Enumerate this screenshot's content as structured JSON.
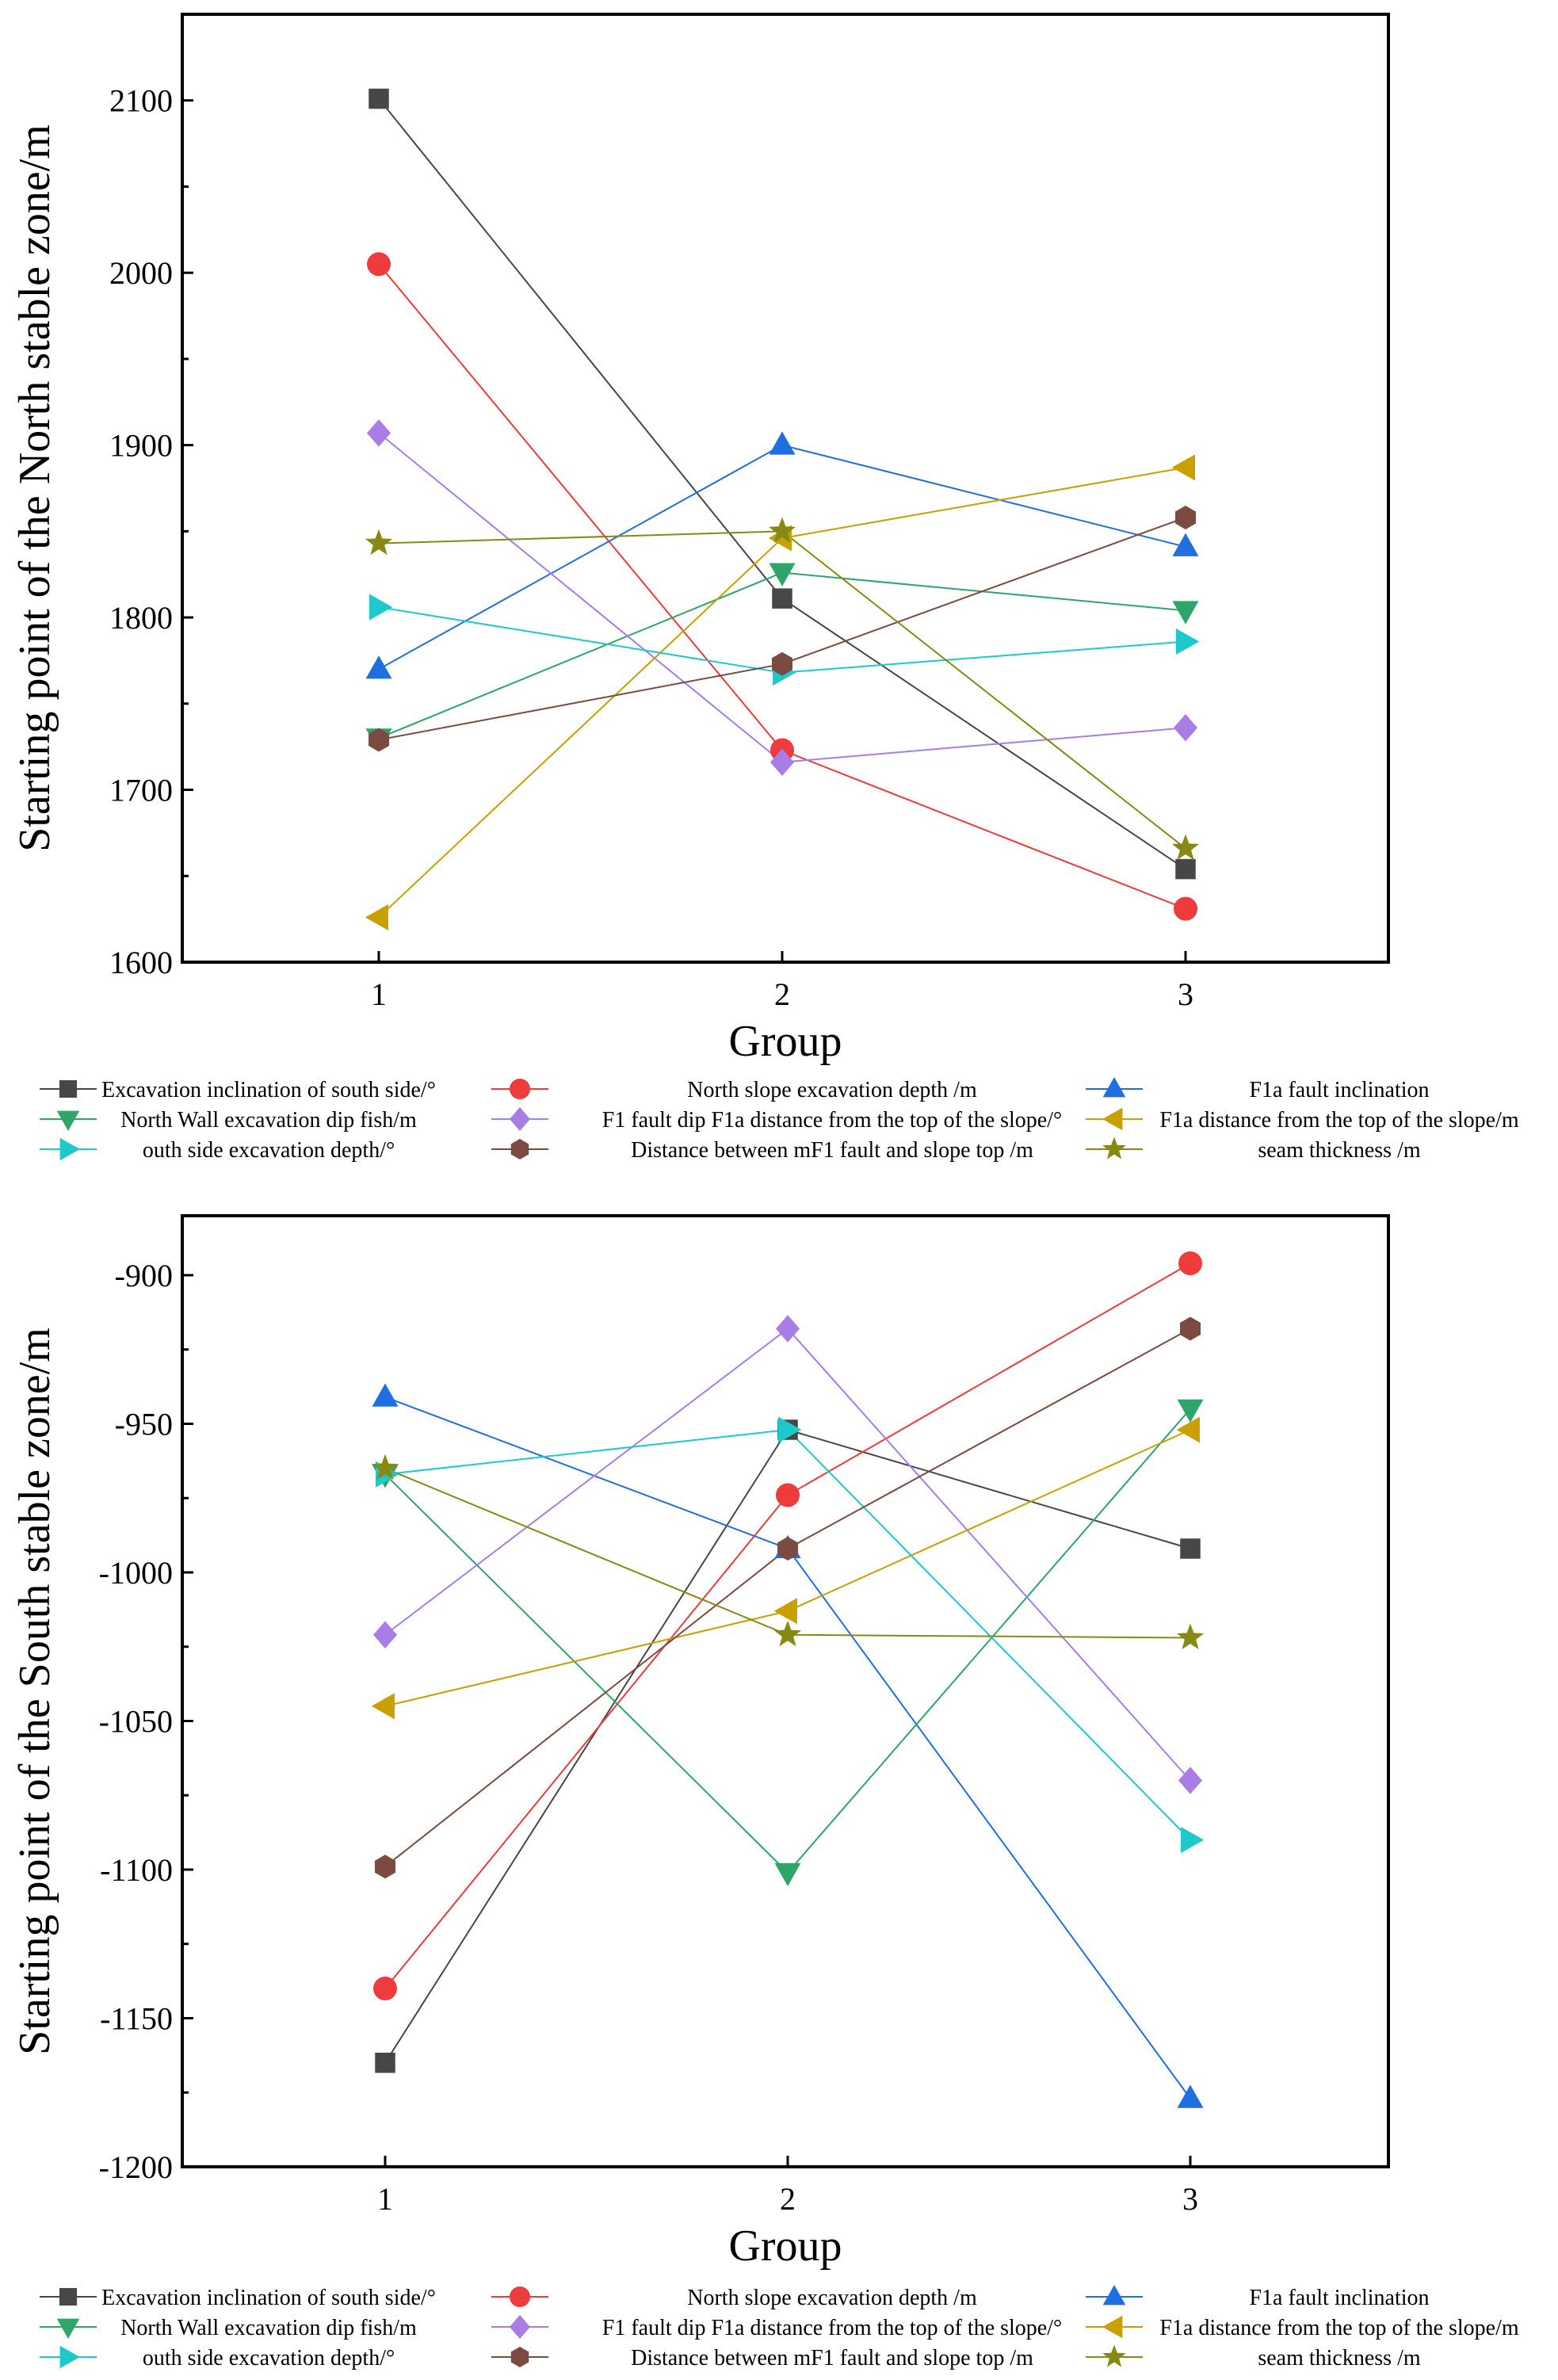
{
  "chart_data": [
    {
      "type": "line",
      "categories": [
        1,
        2,
        3
      ],
      "xlabel": "Group",
      "ylabel": "Starting point of the North stable zone/m",
      "ylim": [
        1600,
        2150
      ],
      "yticks": [
        1600,
        1700,
        1800,
        1900,
        2000,
        2100
      ],
      "series": [
        {
          "name": "Excavation inclination of south side/°",
          "marker": "square",
          "color": "#474747",
          "values": [
            2101,
            1811,
            1654
          ]
        },
        {
          "name": "North slope excavation depth /m",
          "marker": "circle",
          "color": "#ee3b3b",
          "values": [
            2005,
            1723,
            1631
          ]
        },
        {
          "name": "F1a fault inclination",
          "marker": "triangle-up",
          "color": "#1f6fe0",
          "values": [
            1770,
            1900,
            1841
          ]
        },
        {
          "name": "North Wall excavation dip fish/m",
          "marker": "triangle-down",
          "color": "#2ea66a",
          "values": [
            1730,
            1826,
            1804
          ]
        },
        {
          "name": "F1 fault dip F1a distance from the top of the slope/°",
          "marker": "diamond",
          "color": "#a87de6",
          "values": [
            1907,
            1716,
            1736
          ]
        },
        {
          "name": "F1a distance from the top of the slope/m",
          "marker": "triangle-left",
          "color": "#c9a000",
          "values": [
            1626,
            1846,
            1887
          ]
        },
        {
          "name": "outh side excavation depth/°",
          "marker": "triangle-right",
          "color": "#1ec9cc",
          "values": [
            1806,
            1768,
            1786
          ]
        },
        {
          "name": "Distance between mF1 fault and slope top /m",
          "marker": "hexagon",
          "color": "#7b4a40",
          "values": [
            1729,
            1773,
            1858
          ]
        },
        {
          "name": "seam thickness /m",
          "marker": "star",
          "color": "#868a14",
          "values": [
            1843,
            1850,
            1666
          ]
        }
      ]
    },
    {
      "type": "line",
      "categories": [
        1,
        2,
        3
      ],
      "xlabel": "Group",
      "ylabel": "Starting point of the South stable zone/m",
      "ylim": [
        -1200,
        -880
      ],
      "yticks": [
        -1200,
        -1150,
        -1100,
        -1050,
        -1000,
        -950,
        -900
      ],
      "series": [
        {
          "name": "Excavation inclination of south side/°",
          "marker": "square",
          "color": "#474747",
          "values": [
            -1165,
            -952,
            -992
          ]
        },
        {
          "name": "North slope excavation depth /m",
          "marker": "circle",
          "color": "#ee3b3b",
          "values": [
            -1140,
            -974,
            -896
          ]
        },
        {
          "name": "F1a fault inclination",
          "marker": "triangle-up",
          "color": "#1f6fe0",
          "values": [
            -941,
            -992,
            -1177
          ]
        },
        {
          "name": "North Wall excavation dip fish/m",
          "marker": "triangle-down",
          "color": "#2ea66a",
          "values": [
            -967,
            -1101,
            -945
          ]
        },
        {
          "name": "F1 fault dip F1a distance from the top of the slope/°",
          "marker": "diamond",
          "color": "#a87de6",
          "values": [
            -1021,
            -918,
            -1070
          ]
        },
        {
          "name": "F1a distance from the top of the slope/m",
          "marker": "triangle-left",
          "color": "#c9a000",
          "values": [
            -1045,
            -1013,
            -952
          ]
        },
        {
          "name": "outh side excavation depth/°",
          "marker": "triangle-right",
          "color": "#1ec9cc",
          "values": [
            -967,
            -952,
            -1090
          ]
        },
        {
          "name": "Distance between mF1 fault and slope top /m",
          "marker": "hexagon",
          "color": "#7b4a40",
          "values": [
            -1099,
            -992,
            -918
          ]
        },
        {
          "name": "seam thickness /m",
          "marker": "star",
          "color": "#868a14",
          "values": [
            -965,
            -1021,
            -1022
          ]
        }
      ]
    }
  ]
}
